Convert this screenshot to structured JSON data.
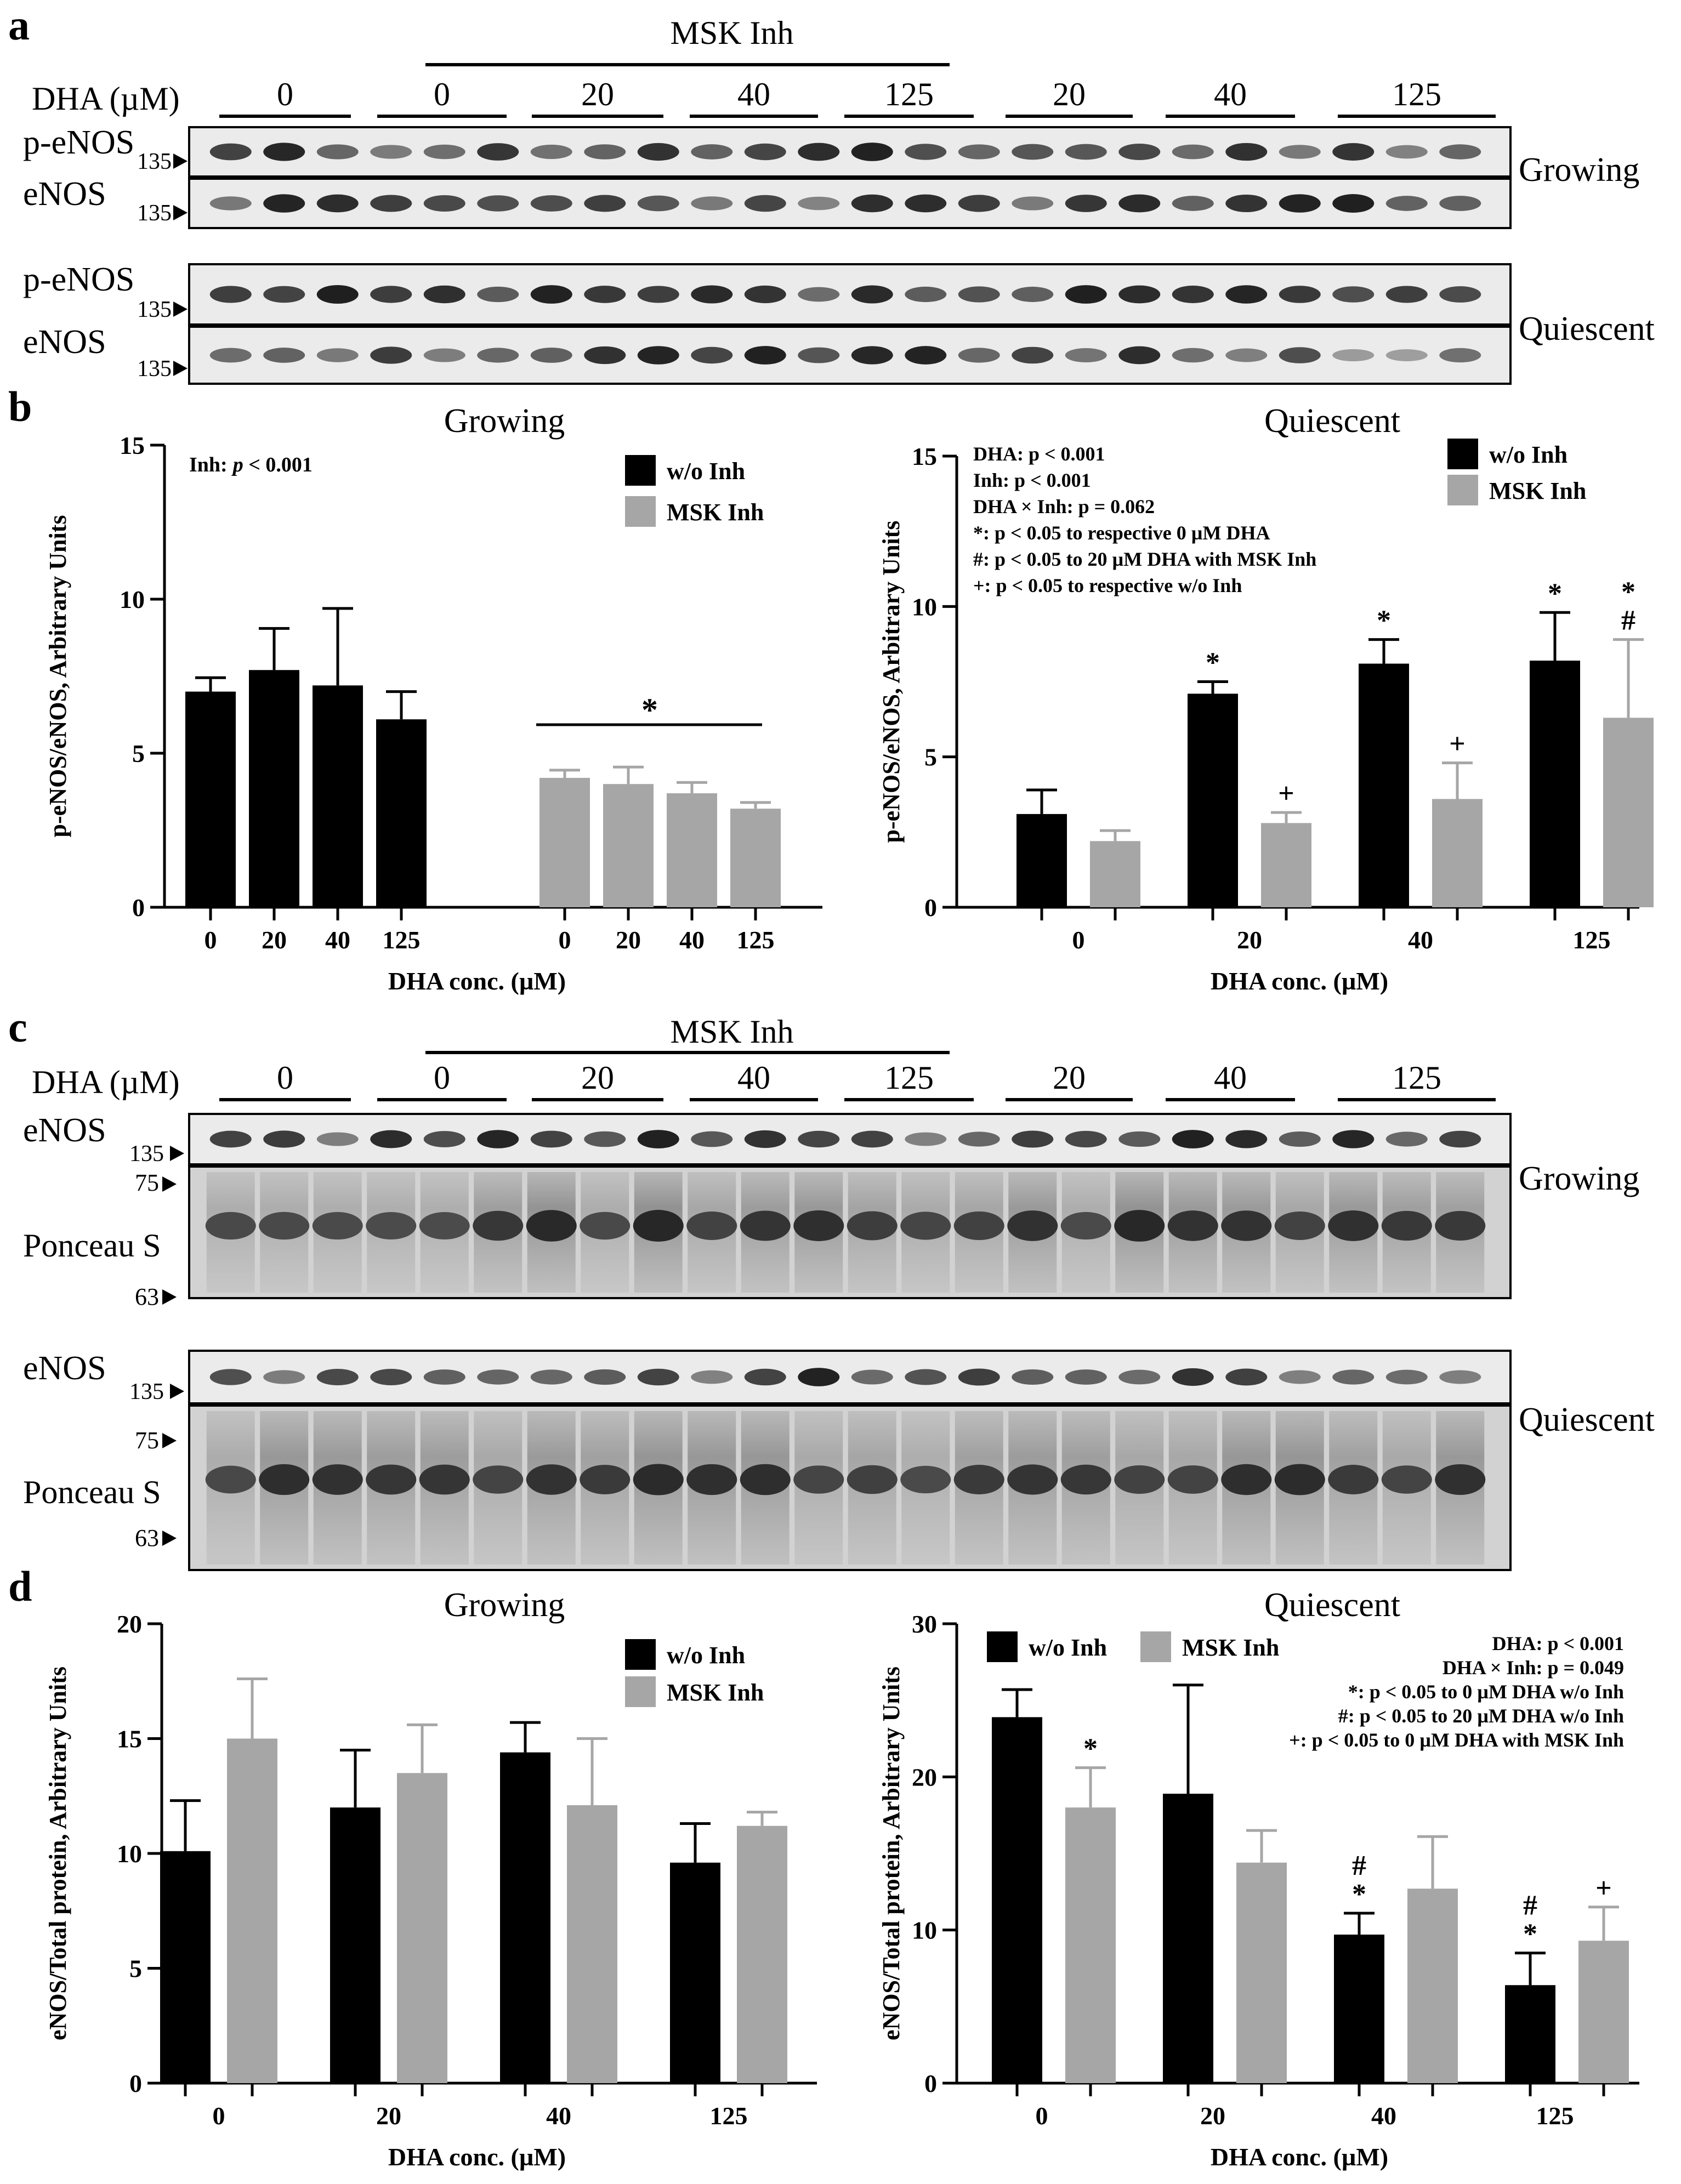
{
  "panels": {
    "a": "a",
    "b": "b",
    "c": "c",
    "d": "d"
  },
  "blot_a": {
    "inhibitor_header": "MSK Inh",
    "dha_label": "DHA (µM)",
    "groups": [
      "0",
      "0",
      "20",
      "40",
      "125",
      "20",
      "40",
      "125"
    ],
    "rows": [
      {
        "label": "p-eNOS",
        "marker": "135"
      },
      {
        "label": "eNOS",
        "marker": "135"
      },
      {
        "label": "p-eNOS",
        "marker": "135"
      },
      {
        "label": "eNOS",
        "marker": "135"
      }
    ],
    "condition_labels": [
      "Growing",
      "Quiescent"
    ]
  },
  "blot_c": {
    "inhibitor_header": "MSK Inh",
    "dha_label": "DHA (µM)",
    "groups": [
      "0",
      "0",
      "20",
      "40",
      "125",
      "20",
      "40",
      "125"
    ],
    "enos_label": "eNOS",
    "enos_marker": "135",
    "ponceau_label": "Ponceau S",
    "ponceau_markers": [
      "75",
      "63"
    ],
    "condition_labels": [
      "Growing",
      "Quiescent"
    ]
  },
  "chart_data": [
    {
      "type": "bar",
      "panel": "b",
      "title": "Growing",
      "xlabel": "DHA conc. (µM)",
      "ylabel": "p-eNOS/eNOS, Arbitrary Units",
      "ylim": [
        0,
        15
      ],
      "yticks": [
        "0",
        "5",
        "10",
        "15"
      ],
      "categories": [
        "0",
        "20",
        "40",
        "125"
      ],
      "legend": [
        "w/o Inh",
        "MSK Inh"
      ],
      "series": [
        {
          "name": "w/o Inh",
          "values": [
            7.0,
            7.7,
            7.2,
            6.1
          ],
          "errors": [
            0.45,
            1.35,
            2.5,
            0.9
          ],
          "color": "#000000"
        },
        {
          "name": "MSK Inh",
          "values": [
            4.2,
            4.0,
            3.7,
            3.2
          ],
          "errors": [
            0.25,
            0.55,
            0.35,
            0.2
          ],
          "color": "#a6a6a6"
        }
      ],
      "annotations": {
        "stats_prefix": "Inh:",
        "stats_p": "p",
        "stats_rest": " < 0.001",
        "significance": "*"
      }
    },
    {
      "type": "bar",
      "panel": "b",
      "title": "Quiescent",
      "xlabel": "DHA conc. (µM)",
      "ylabel": "p-eNOS/eNOS, Arbitrary Units",
      "ylim": [
        0,
        15
      ],
      "yticks": [
        "0",
        "5",
        "10",
        "15"
      ],
      "categories": [
        "0",
        "20",
        "40",
        "125"
      ],
      "legend": [
        "w/o Inh",
        "MSK Inh"
      ],
      "series": [
        {
          "name": "w/o Inh",
          "values": [
            3.1,
            7.1,
            8.1,
            8.2
          ],
          "errors": [
            0.8,
            0.4,
            0.8,
            1.6
          ],
          "color": "#000000",
          "marks": [
            "",
            "*",
            "*",
            "*"
          ]
        },
        {
          "name": "MSK Inh",
          "values": [
            2.2,
            2.8,
            3.6,
            6.3
          ],
          "errors": [
            0.35,
            0.35,
            1.2,
            2.6
          ],
          "color": "#a6a6a6",
          "marks": [
            "",
            "+",
            "+",
            "*\n#"
          ]
        }
      ],
      "stats": [
        "DHA: p < 0.001",
        "Inh: p < 0.001",
        "DHA × Inh: p = 0.062",
        "*: p < 0.05 to respective 0 µM DHA",
        "#: p < 0.05 to 20 µM DHA with MSK Inh",
        "+: p < 0.05 to respective w/o Inh"
      ]
    },
    {
      "type": "bar",
      "panel": "d",
      "title": "Growing",
      "xlabel": "DHA conc. (µM)",
      "ylabel": "eNOS/Total protein, Arbitrary Units",
      "ylim": [
        0,
        20
      ],
      "yticks": [
        "0",
        "5",
        "10",
        "15",
        "20"
      ],
      "categories": [
        "0",
        "20",
        "40",
        "125"
      ],
      "legend": [
        "w/o Inh",
        "MSK Inh"
      ],
      "series": [
        {
          "name": "w/o Inh",
          "values": [
            10.1,
            12.0,
            14.4,
            9.6
          ],
          "errors": [
            2.2,
            2.5,
            1.3,
            1.7
          ],
          "color": "#000000"
        },
        {
          "name": "MSK Inh",
          "values": [
            15.0,
            13.5,
            12.1,
            11.2
          ],
          "errors": [
            2.6,
            2.1,
            2.9,
            0.6
          ],
          "color": "#a6a6a6"
        }
      ]
    },
    {
      "type": "bar",
      "panel": "d",
      "title": "Quiescent",
      "xlabel": "DHA conc. (µM)",
      "ylabel": "eNOS/Total protein, Arbitrary Units",
      "ylim": [
        0,
        30
      ],
      "yticks": [
        "0",
        "10",
        "20",
        "30"
      ],
      "categories": [
        "0",
        "20",
        "40",
        "125"
      ],
      "legend": [
        "w/o Inh",
        "MSK Inh"
      ],
      "series": [
        {
          "name": "w/o Inh",
          "values": [
            23.9,
            18.9,
            9.7,
            6.4
          ],
          "errors": [
            1.8,
            7.1,
            1.4,
            2.1
          ],
          "color": "#000000",
          "marks": [
            "",
            "",
            "#\n*",
            "#\n*"
          ]
        },
        {
          "name": "MSK Inh",
          "values": [
            18.0,
            14.4,
            12.7,
            9.3
          ],
          "errors": [
            2.6,
            2.1,
            3.4,
            2.2
          ],
          "color": "#a6a6a6",
          "marks": [
            "*",
            "",
            "",
            "+"
          ]
        }
      ],
      "stats": [
        "DHA: p < 0.001",
        "DHA × Inh: p = 0.049",
        "*: p < 0.05 to 0 µM DHA w/o Inh",
        "#: p < 0.05 to 20 µM DHA w/o Inh",
        "+: p < 0.05 to 0 µM DHA with MSK Inh"
      ]
    }
  ]
}
